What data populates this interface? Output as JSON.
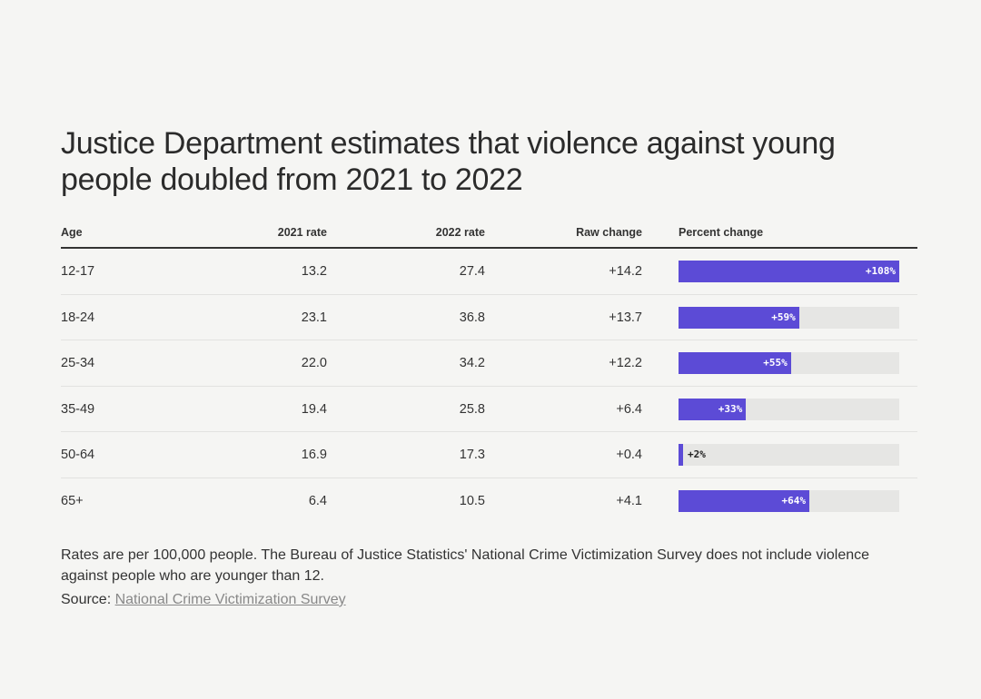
{
  "title": "Justice Department estimates that violence against young people doubled from 2021 to 2022",
  "chart_data": {
    "type": "table",
    "columns": [
      "Age",
      "2021 rate",
      "2022 rate",
      "Raw change",
      "Percent change"
    ],
    "rows": [
      {
        "age": "12-17",
        "rate_2021": "13.2",
        "rate_2022": "27.4",
        "raw_change": "+14.2",
        "percent_change": 108,
        "percent_label": "+108%"
      },
      {
        "age": "18-24",
        "rate_2021": "23.1",
        "rate_2022": "36.8",
        "raw_change": "+13.7",
        "percent_change": 59,
        "percent_label": "+59%"
      },
      {
        "age": "25-34",
        "rate_2021": "22.0",
        "rate_2022": "34.2",
        "raw_change": "+12.2",
        "percent_change": 55,
        "percent_label": "+55%"
      },
      {
        "age": "35-49",
        "rate_2021": "19.4",
        "rate_2022": "25.8",
        "raw_change": "+6.4",
        "percent_change": 33,
        "percent_label": "+33%"
      },
      {
        "age": "50-64",
        "rate_2021": "16.9",
        "rate_2022": "17.3",
        "raw_change": "+0.4",
        "percent_change": 2,
        "percent_label": "+2%"
      },
      {
        "age": "65+",
        "rate_2021": "6.4",
        "rate_2022": "10.5",
        "raw_change": "+4.1",
        "percent_change": 64,
        "percent_label": "+64%"
      }
    ],
    "bar_max": 108,
    "colors": {
      "bar": "#5c4bd6",
      "track": "#e6e6e4"
    }
  },
  "note": "Rates are per 100,000 people. The Bureau of Justice Statistics' National Crime Victimization Survey does not include violence against people who are younger than 12.",
  "source_label": "Source:",
  "source_link": "National Crime Victimization Survey"
}
